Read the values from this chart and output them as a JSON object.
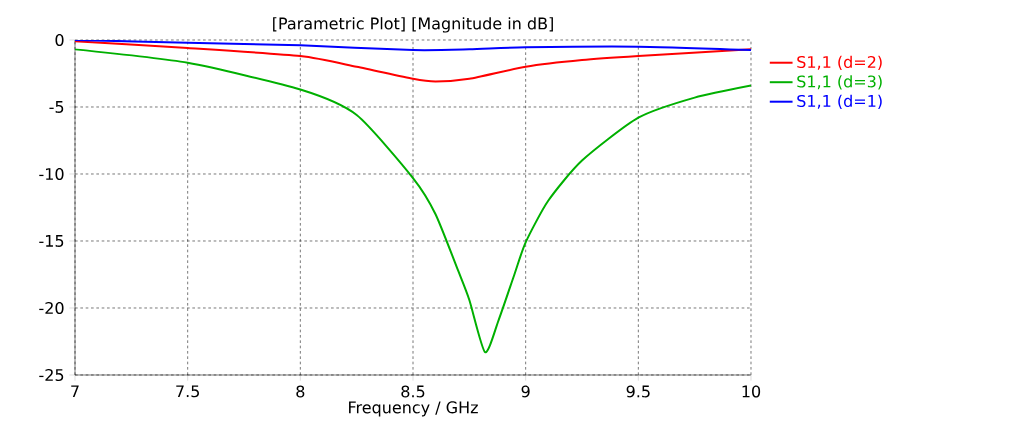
{
  "chart_data": {
    "type": "line",
    "title": "[Parametric Plot] [Magnitude in dB]",
    "xlabel": "Frequency / GHz",
    "xlim": [
      7,
      10
    ],
    "ylim": [
      -25,
      0
    ],
    "xticks": [
      7,
      7.5,
      8,
      8.5,
      9,
      9.5,
      10
    ],
    "yticks": [
      -25,
      -20,
      -15,
      -10,
      -5,
      0
    ],
    "grid": true,
    "legend": "right",
    "line_style": "solid",
    "marker": "none",
    "series": [
      {
        "name": "S1,1 (d=2)",
        "color": "#ff0000",
        "x": [
          7,
          7.5,
          8,
          8.25,
          8.5,
          8.6,
          8.75,
          9,
          9.25,
          9.5,
          10
        ],
        "values": [
          -0.1,
          -0.6,
          -1.2,
          -2,
          -2.9,
          -3.1,
          -2.9,
          -2.0,
          -1.5,
          -1.2,
          -0.7
        ]
      },
      {
        "name": "S1,1 (d=3)",
        "color": "#00b000",
        "x": [
          7,
          7.5,
          8,
          8.25,
          8.5,
          8.6,
          8.7,
          8.75,
          8.82,
          8.88,
          8.95,
          9,
          9.1,
          9.25,
          9.5,
          9.75,
          10
        ],
        "values": [
          -0.7,
          -1.7,
          -3.7,
          -5.6,
          -10.3,
          -13,
          -17.2,
          -19.4,
          -23.3,
          -20.9,
          -17.5,
          -15.1,
          -12,
          -9,
          -5.8,
          -4.3,
          -3.4
        ]
      },
      {
        "name": "S1,1 (d=1)",
        "color": "#0000ff",
        "x": [
          7,
          7.5,
          8,
          8.5,
          8.75,
          9,
          9.5,
          10
        ],
        "values": [
          0,
          -0.2,
          -0.4,
          -0.75,
          -0.7,
          -0.55,
          -0.5,
          -0.75
        ]
      }
    ]
  }
}
